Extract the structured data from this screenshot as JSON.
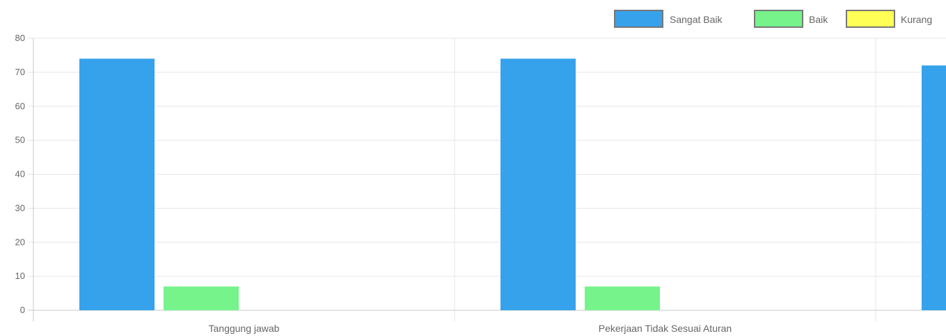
{
  "chart_data": {
    "type": "bar",
    "categories": [
      "Tanggung jawab",
      "Pekerjaan Tidak Sesuai Aturan",
      ""
    ],
    "series": [
      {
        "name": "Sangat Baik",
        "color": "#36a2eb",
        "border": "#ffffff",
        "values": [
          74,
          74,
          72
        ]
      },
      {
        "name": "Baik",
        "color": "#76f38a",
        "border": "#ffffff",
        "values": [
          7,
          7,
          null
        ]
      },
      {
        "name": "Kurang",
        "color": "#ffff55",
        "border": "#888888",
        "values": [
          0,
          0,
          null
        ]
      }
    ],
    "yticks": [
      "0",
      "10",
      "20",
      "30",
      "40",
      "50",
      "60",
      "70",
      "80"
    ],
    "ylim": [
      0,
      80
    ],
    "grid": true,
    "legend_position": "top-right",
    "grid_color": "#e5e5e5",
    "axis_color": "#c8c8c8",
    "label_color": "#666666"
  }
}
